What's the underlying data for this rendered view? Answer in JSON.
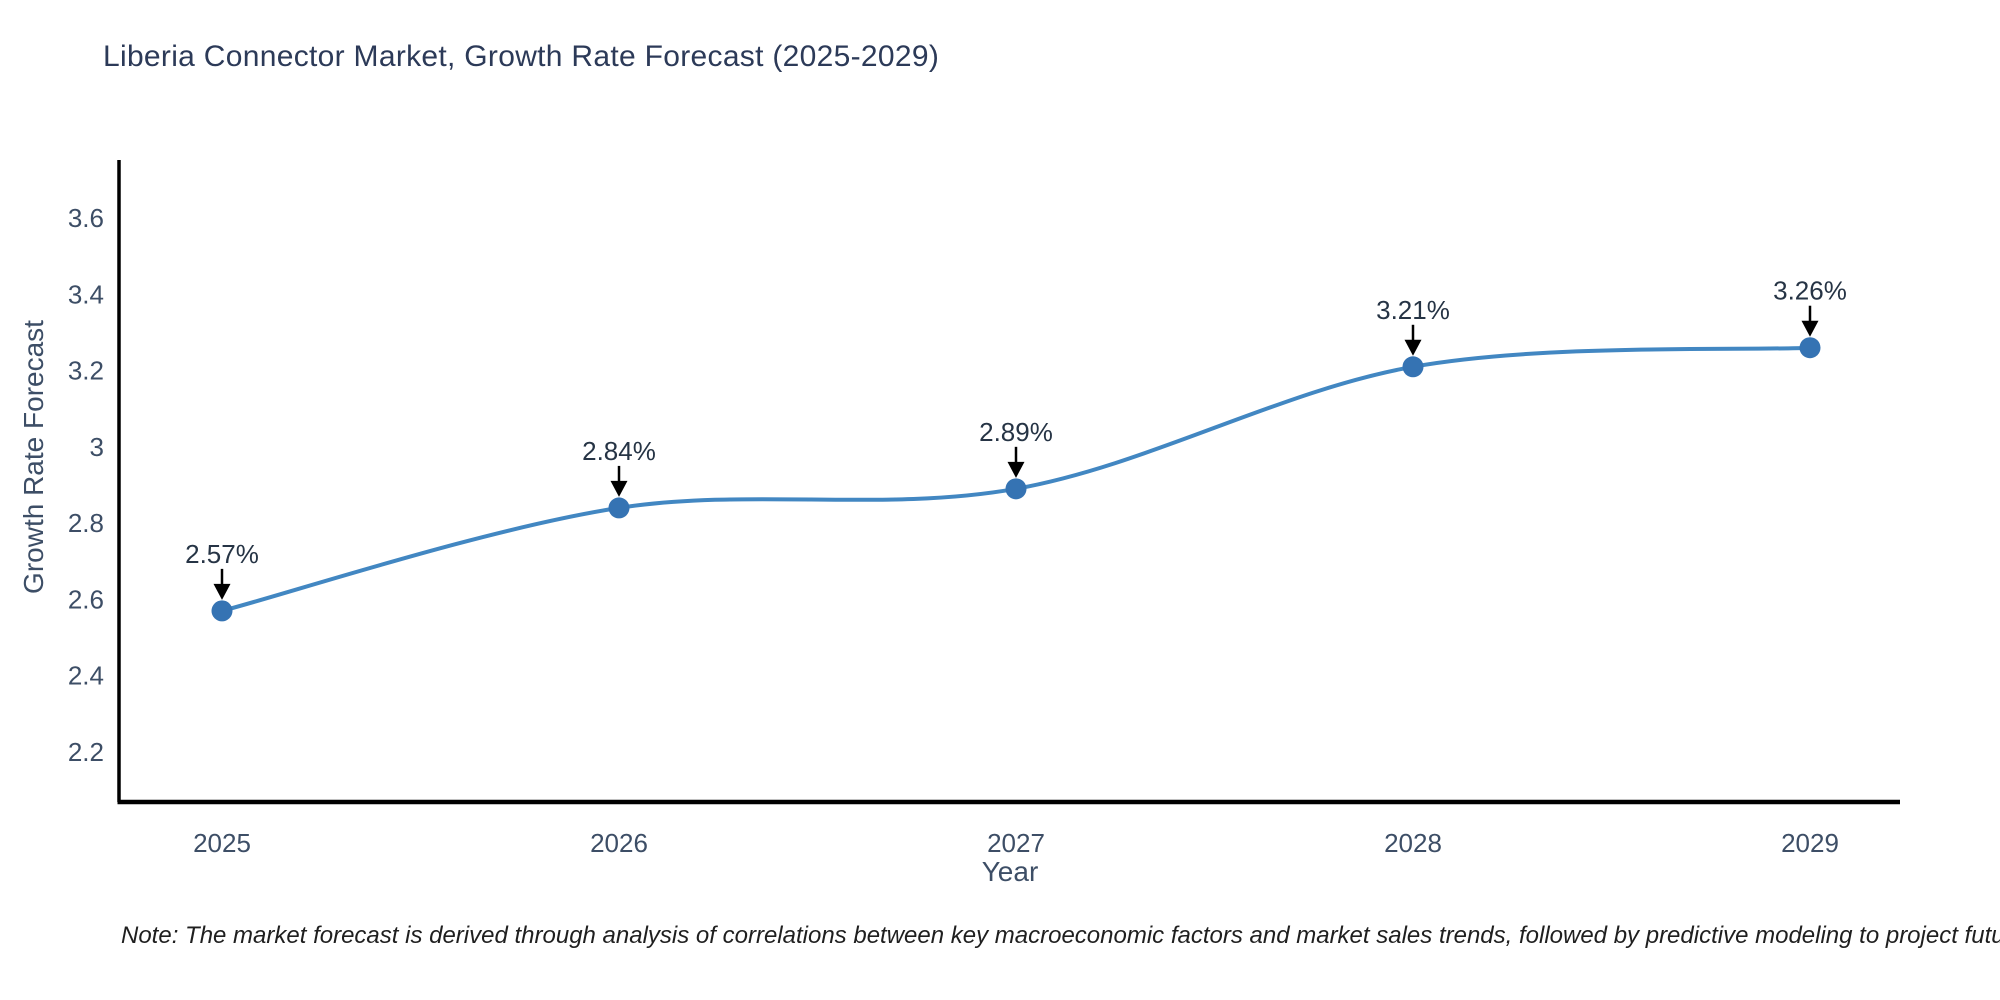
{
  "title": "Liberia Connector Market, Growth Rate Forecast (2025-2029)",
  "note": "Note: The market forecast is derived through analysis of correlations between key macroeconomic factors and market sales trends, followed by predictive modeling to project future sales",
  "chart_data": {
    "type": "line",
    "title": "Liberia Connector Market, Growth Rate Forecast (2025-2029)",
    "xlabel": "Year",
    "ylabel": "Growth Rate Forecast",
    "x": [
      2025,
      2026,
      2027,
      2028,
      2029
    ],
    "y": [
      2.57,
      2.84,
      2.89,
      3.21,
      3.26
    ],
    "point_labels": [
      "2.57%",
      "2.84%",
      "2.89%",
      "3.21%",
      "3.26%"
    ],
    "xticks": [
      "2025",
      "2026",
      "2027",
      "2028",
      "2029"
    ],
    "yticks": [
      3.6,
      3.4,
      3.2,
      3,
      2.8,
      2.6,
      2.4,
      2.2
    ],
    "ylim": [
      2.07,
      3.75
    ],
    "grid": false,
    "legend": false,
    "line_shape": "spline",
    "line_color": "#4287c2",
    "marker_color": "#3573b3",
    "annotation_arrow_color": "#000000",
    "axis_line_color": "#000000",
    "tick_color": "#3d4e66",
    "title_color": "#2c3a58"
  }
}
